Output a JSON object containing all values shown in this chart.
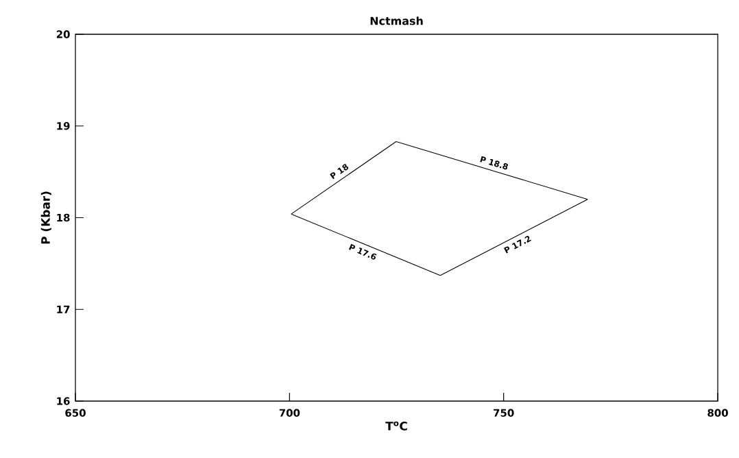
{
  "chart_data": {
    "type": "line",
    "title": "Nctmash",
    "xlabel": "T$^{o}$C",
    "ylabel": "P (Kbar)",
    "series": [
      {
        "name": "P 18",
        "color": "#000000",
        "x": [
          700.4,
          724.9
        ],
        "values": [
          18.04,
          18.83
        ]
      },
      {
        "name": "P 18.8",
        "color": "#000000",
        "x": [
          724.9,
          769.6
        ],
        "values": [
          18.83,
          18.2
        ]
      },
      {
        "name": "P 17.2",
        "color": "#000000",
        "x": [
          769.6,
          735.2
        ],
        "values": [
          18.2,
          17.37
        ]
      },
      {
        "name": "P 17.6",
        "color": "#000000",
        "x": [
          735.2,
          700.4
        ],
        "values": [
          17.37,
          18.04
        ]
      }
    ],
    "marker": "none",
    "line_style": "solid",
    "grid": false,
    "legend": false,
    "xlim": [
      650,
      800
    ],
    "ylim": [
      16,
      20
    ],
    "xticks": [
      650,
      700,
      750,
      800
    ],
    "yticks": [
      16,
      17,
      18,
      19,
      20
    ]
  }
}
